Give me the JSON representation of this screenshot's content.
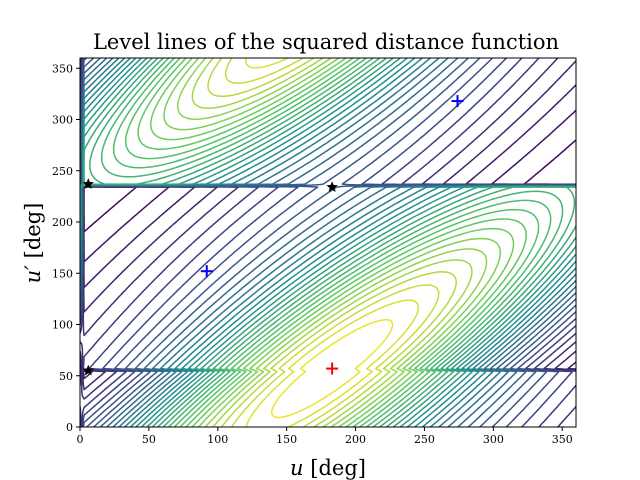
{
  "chart_data": {
    "type": "contour",
    "title": "Level lines of the squared distance function",
    "xlabel": {
      "symbol": "u",
      "unit": "[deg]"
    },
    "ylabel": {
      "symbol": "u′",
      "unit": "[deg]"
    },
    "xlim": [
      0,
      360
    ],
    "ylim": [
      0,
      360
    ],
    "xticks": [
      0,
      50,
      100,
      150,
      200,
      250,
      300,
      350
    ],
    "yticks": [
      0,
      50,
      100,
      150,
      200,
      250,
      300,
      350
    ],
    "colormap": [
      "#440154",
      "#3b528b",
      "#21918c",
      "#5ec962",
      "#fde725"
    ],
    "contour_levels": 34,
    "field": {
      "kind": "periodic-elliptical",
      "center": [
        183,
        57
      ],
      "period": 360,
      "lifted_valley": [
        1.2,
        0.25
      ],
      "cross_coefficient": 0.9
    },
    "markers": [
      {
        "name": "maximum",
        "symbol": "plus",
        "color": "#ff0000",
        "x": 183,
        "y": 57
      },
      {
        "name": "saddle-a",
        "symbol": "plus",
        "color": "#0000ff",
        "x": 92,
        "y": 152
      },
      {
        "name": "saddle-b",
        "symbol": "plus",
        "color": "#0000ff",
        "x": 274,
        "y": 318
      },
      {
        "name": "minimum-a",
        "symbol": "star",
        "color": "#000000",
        "x": 6,
        "y": 237
      },
      {
        "name": "minimum-b",
        "symbol": "star",
        "color": "#000000",
        "x": 6,
        "y": 55
      },
      {
        "name": "minimum-c",
        "symbol": "star",
        "color": "#000000",
        "x": 183,
        "y": 234
      }
    ],
    "grid": false,
    "legend": "none"
  }
}
